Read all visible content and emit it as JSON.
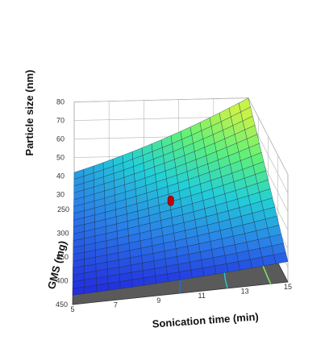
{
  "chart_data": {
    "type": "surface3d",
    "z_axis": {
      "label": "Particle size (nm)",
      "ticks": [
        30,
        40,
        50,
        60,
        70,
        80
      ],
      "range": [
        22,
        80
      ]
    },
    "x_axis": {
      "label": "Sonication time (min)",
      "ticks": [
        5,
        7,
        9,
        11,
        13,
        15
      ],
      "range": [
        5,
        15
      ]
    },
    "y_axis": {
      "label": "GMS (mg)",
      "ticks": [
        250,
        300,
        350,
        400,
        450
      ],
      "range": [
        250,
        450
      ]
    },
    "surface_corners": {
      "time_5_gms_250": 42,
      "time_15_gms_250": 73,
      "time_5_gms_450": 27,
      "time_15_gms_450": 33
    },
    "surface_mesh": "18x18",
    "design_point": {
      "time": 10,
      "gms": 350,
      "size": 32,
      "color": "#cc0000"
    },
    "colormap": [
      "#2222dd",
      "#2a7fe8",
      "#22cfd6",
      "#5ef07a",
      "#c6f24a"
    ],
    "floor_color": "#5a5a5a",
    "floor_contour_colors": [
      "#1f6fe0",
      "#22c9c9",
      "#7fe86a"
    ],
    "grid": true
  }
}
